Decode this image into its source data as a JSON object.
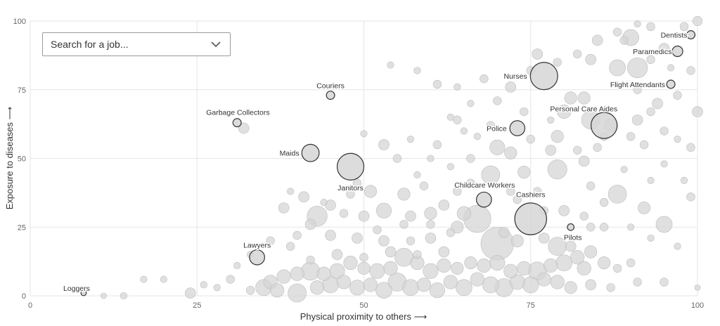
{
  "search": {
    "placeholder": "Search for a job..."
  },
  "colors": {
    "bubble_fill": "#d6d6d6",
    "bubble_stroke": "#bdbdbd",
    "highlight_stroke": "#333333",
    "grid": "#e6e6e6"
  },
  "chart_data": {
    "type": "scatter",
    "xlabel": "Physical proximity to others ⟶",
    "ylabel": "Exposure to diseases ⟶",
    "xlim": [
      0,
      100
    ],
    "ylim": [
      0,
      100
    ],
    "xticks": [
      0,
      25,
      50,
      75,
      100
    ],
    "yticks": [
      0,
      25,
      50,
      75,
      100
    ],
    "grid": true,
    "highlighted": [
      {
        "name": "Dentists",
        "x": 99,
        "y": 95,
        "size": 1
      },
      {
        "name": "Paramedics",
        "x": 97,
        "y": 89,
        "size": 2
      },
      {
        "name": "Nurses",
        "x": 77,
        "y": 80,
        "size": 20
      },
      {
        "name": "Flight Attendants",
        "x": 96,
        "y": 77,
        "size": 1
      },
      {
        "name": "Couriers",
        "x": 45,
        "y": 73,
        "size": 1
      },
      {
        "name": "Personal Care Aides",
        "x": 86,
        "y": 62,
        "size": 18
      },
      {
        "name": "Garbage Collectors",
        "x": 31,
        "y": 63,
        "size": 1
      },
      {
        "name": "Police",
        "x": 73,
        "y": 61,
        "size": 5
      },
      {
        "name": "Maids",
        "x": 42,
        "y": 52,
        "size": 7
      },
      {
        "name": "Janitors",
        "x": 48,
        "y": 47,
        "size": 19
      },
      {
        "name": "Childcare Workers",
        "x": 68,
        "y": 35,
        "size": 5
      },
      {
        "name": "Cashiers",
        "x": 75,
        "y": 28,
        "size": 28
      },
      {
        "name": "Pilots",
        "x": 81,
        "y": 25,
        "size": 0.5
      },
      {
        "name": "Lawyers",
        "x": 34,
        "y": 14,
        "size": 5
      },
      {
        "name": "Loggers",
        "x": 8,
        "y": 1,
        "size": 0.2
      }
    ],
    "background": [
      [
        100,
        100,
        1.5
      ],
      [
        98,
        98,
        1
      ],
      [
        93,
        98,
        1
      ],
      [
        91,
        99,
        0.5
      ],
      [
        90,
        94,
        6
      ],
      [
        88,
        96,
        1
      ],
      [
        95,
        90,
        2
      ],
      [
        89,
        93,
        1
      ],
      [
        85,
        93,
        2
      ],
      [
        84,
        86,
        2
      ],
      [
        88,
        83,
        6
      ],
      [
        91,
        83,
        10
      ],
      [
        93,
        86,
        1
      ],
      [
        96,
        83,
        0.5
      ],
      [
        99,
        82,
        1
      ],
      [
        100,
        67,
        2
      ],
      [
        82,
        88,
        1
      ],
      [
        79,
        85,
        1
      ],
      [
        76,
        88,
        2
      ],
      [
        75,
        82,
        1
      ],
      [
        72,
        76,
        2
      ],
      [
        68,
        79,
        1
      ],
      [
        70,
        71,
        1
      ],
      [
        66,
        70,
        0.5
      ],
      [
        81,
        72,
        3
      ],
      [
        83,
        72,
        3
      ],
      [
        91,
        75,
        1
      ],
      [
        94,
        70,
        2
      ],
      [
        97,
        73,
        1
      ],
      [
        93,
        67,
        1
      ],
      [
        80,
        67,
        4
      ],
      [
        84,
        64,
        8
      ],
      [
        87,
        62,
        4
      ],
      [
        91,
        64,
        2
      ],
      [
        95,
        60,
        1
      ],
      [
        99,
        54,
        1
      ],
      [
        92,
        55,
        1
      ],
      [
        85,
        54,
        1
      ],
      [
        82,
        53,
        1
      ],
      [
        79,
        58,
        3
      ],
      [
        78,
        53,
        2
      ],
      [
        75,
        57,
        1
      ],
      [
        70,
        54,
        5
      ],
      [
        72,
        52,
        3
      ],
      [
        66,
        50,
        1
      ],
      [
        69,
        44,
        8
      ],
      [
        74,
        45,
        3
      ],
      [
        79,
        46,
        9
      ],
      [
        83,
        49,
        2
      ],
      [
        88,
        37,
        8
      ],
      [
        86,
        34,
        1
      ],
      [
        84,
        40,
        1
      ],
      [
        92,
        32,
        3
      ],
      [
        95,
        26,
        6
      ],
      [
        99,
        36,
        1
      ],
      [
        63,
        65,
        0.5
      ],
      [
        64,
        64,
        1
      ],
      [
        61,
        55,
        1
      ],
      [
        57,
        57,
        0.5
      ],
      [
        55,
        50,
        1
      ],
      [
        53,
        55,
        2
      ],
      [
        50,
        59,
        0.5
      ],
      [
        54,
        84,
        0.5
      ],
      [
        58,
        82,
        0.5
      ],
      [
        61,
        77,
        1
      ],
      [
        64,
        76,
        0.5
      ],
      [
        49,
        41,
        1
      ],
      [
        51,
        38,
        3
      ],
      [
        56,
        37,
        3
      ],
      [
        59,
        40,
        1
      ],
      [
        64,
        38,
        1
      ],
      [
        66,
        41,
        1
      ],
      [
        62,
        33,
        2
      ],
      [
        65,
        30,
        4
      ],
      [
        60,
        30,
        3
      ],
      [
        57,
        29,
        2
      ],
      [
        53,
        31,
        5
      ],
      [
        50,
        29,
        2
      ],
      [
        47,
        30,
        1
      ],
      [
        43,
        29,
        10
      ],
      [
        41,
        36,
        2
      ],
      [
        38,
        32,
        2
      ],
      [
        45,
        33,
        2
      ],
      [
        42,
        26,
        2
      ],
      [
        45,
        22,
        2
      ],
      [
        49,
        21,
        2
      ],
      [
        53,
        20,
        2
      ],
      [
        57,
        20,
        1
      ],
      [
        60,
        21,
        2
      ],
      [
        64,
        25,
        3
      ],
      [
        67,
        28,
        20
      ],
      [
        71,
        23,
        2
      ],
      [
        70,
        19,
        30
      ],
      [
        73,
        20,
        3
      ],
      [
        77,
        21,
        2
      ],
      [
        79,
        18,
        8
      ],
      [
        81,
        18,
        2
      ],
      [
        82,
        14,
        4
      ],
      [
        84,
        16,
        3
      ],
      [
        86,
        12,
        3
      ],
      [
        88,
        10,
        1
      ],
      [
        90,
        12,
        1
      ],
      [
        83,
        10,
        4
      ],
      [
        80,
        12,
        6
      ],
      [
        78,
        11,
        4
      ],
      [
        76,
        9,
        8
      ],
      [
        74,
        10,
        4
      ],
      [
        72,
        9,
        4
      ],
      [
        70,
        12,
        5
      ],
      [
        68,
        11,
        4
      ],
      [
        66,
        12,
        3
      ],
      [
        64,
        10,
        3
      ],
      [
        62,
        11,
        4
      ],
      [
        60,
        9,
        5
      ],
      [
        58,
        12,
        4
      ],
      [
        56,
        14,
        8
      ],
      [
        54,
        10,
        4
      ],
      [
        52,
        9,
        5
      ],
      [
        50,
        10,
        3
      ],
      [
        48,
        12,
        4
      ],
      [
        46,
        9,
        5
      ],
      [
        44,
        8,
        4
      ],
      [
        42,
        9,
        8
      ],
      [
        40,
        8,
        4
      ],
      [
        38,
        7,
        4
      ],
      [
        36,
        5,
        4
      ],
      [
        35,
        3,
        6
      ],
      [
        33,
        2,
        1
      ],
      [
        37,
        2,
        4
      ],
      [
        40,
        1,
        8
      ],
      [
        43,
        3,
        4
      ],
      [
        45,
        4,
        6
      ],
      [
        47,
        5,
        4
      ],
      [
        49,
        3,
        5
      ],
      [
        51,
        4,
        4
      ],
      [
        53,
        2,
        6
      ],
      [
        55,
        5,
        8
      ],
      [
        57,
        3,
        6
      ],
      [
        59,
        4,
        4
      ],
      [
        61,
        2,
        5
      ],
      [
        63,
        5,
        4
      ],
      [
        65,
        3,
        6
      ],
      [
        67,
        6,
        4
      ],
      [
        69,
        4,
        6
      ],
      [
        71,
        3,
        8
      ],
      [
        73,
        5,
        5
      ],
      [
        75,
        4,
        6
      ],
      [
        77,
        6,
        4
      ],
      [
        79,
        5,
        4
      ],
      [
        81,
        3,
        3
      ],
      [
        84,
        4,
        2
      ],
      [
        87,
        3,
        1
      ],
      [
        91,
        5,
        1
      ],
      [
        95,
        5,
        1
      ],
      [
        42,
        13,
        1
      ],
      [
        46,
        15,
        2
      ],
      [
        50,
        14,
        1
      ],
      [
        54,
        16,
        2
      ],
      [
        58,
        15,
        1
      ],
      [
        62,
        16,
        2
      ],
      [
        39,
        18,
        1
      ],
      [
        36,
        20,
        1
      ],
      [
        40,
        22,
        1
      ],
      [
        30,
        6,
        1
      ],
      [
        28,
        3,
        0.5
      ],
      [
        24,
        1,
        2
      ],
      [
        20,
        6,
        0.5
      ],
      [
        17,
        6,
        0.5
      ],
      [
        14,
        0,
        0.5
      ],
      [
        11,
        0,
        0.3
      ],
      [
        26,
        4,
        0.5
      ],
      [
        31,
        11,
        0.5
      ],
      [
        33,
        15,
        0.5
      ],
      [
        32,
        61,
        2
      ],
      [
        39,
        38,
        0.5
      ],
      [
        44,
        34,
        0.5
      ],
      [
        48,
        37,
        1
      ],
      [
        52,
        24,
        1
      ],
      [
        56,
        26,
        1
      ],
      [
        60,
        26,
        1
      ],
      [
        63,
        23,
        1
      ],
      [
        73,
        35,
        1
      ],
      [
        76,
        38,
        1
      ],
      [
        80,
        31,
        2
      ],
      [
        83,
        29,
        1
      ],
      [
        84,
        25,
        1
      ],
      [
        86,
        25,
        1
      ],
      [
        77,
        31,
        1
      ],
      [
        72,
        38,
        1
      ],
      [
        58,
        44,
        0.5
      ],
      [
        63,
        47,
        0.5
      ],
      [
        67,
        58,
        0.5
      ],
      [
        69,
        62,
        1
      ],
      [
        65,
        60,
        0.5
      ],
      [
        60,
        50,
        0.5
      ],
      [
        74,
        67,
        1
      ],
      [
        78,
        64,
        0.5
      ],
      [
        86,
        58,
        1
      ],
      [
        90,
        58,
        1
      ],
      [
        97,
        57,
        0.5
      ],
      [
        95,
        48,
        0.5
      ],
      [
        98,
        42,
        0.5
      ],
      [
        93,
        42,
        0.5
      ],
      [
        89,
        46,
        0.5
      ],
      [
        100,
        3,
        0.3
      ],
      [
        97,
        18,
        0.5
      ],
      [
        93,
        21,
        0.5
      ],
      [
        90,
        25,
        0.5
      ]
    ]
  }
}
